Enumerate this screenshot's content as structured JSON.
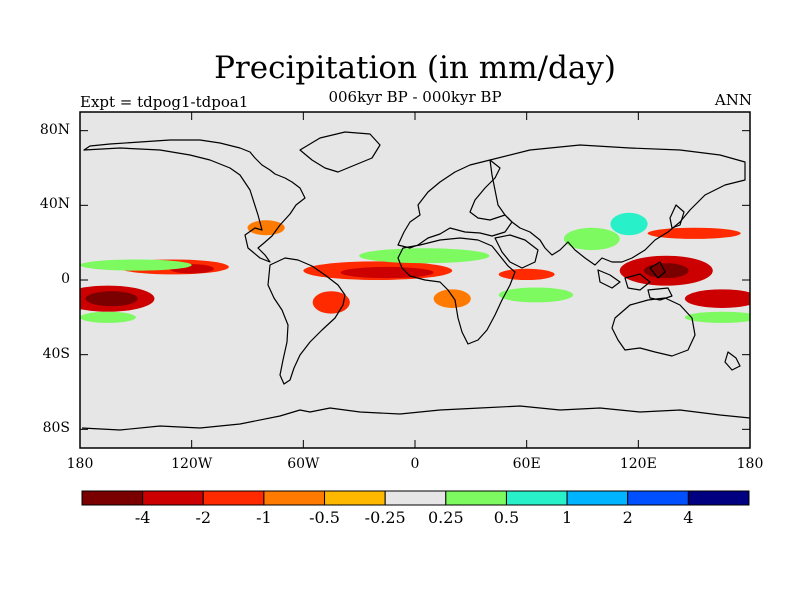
{
  "title": "Precipitation (in mm/day)",
  "left_title": "Expt = tdpog1-tdpoa1",
  "center_title": "006kyr BP - 000kyr BP",
  "right_title": "ANN",
  "background_color": "#e6e6e6",
  "y_ticks": [
    {
      "label": "80N",
      "lat": 80
    },
    {
      "label": "40N",
      "lat": 40
    },
    {
      "label": "0",
      "lat": 0
    },
    {
      "label": "40S",
      "lat": -40
    },
    {
      "label": "80S",
      "lat": -80
    }
  ],
  "x_ticks": [
    {
      "label": "180",
      "lon": -180
    },
    {
      "label": "120W",
      "lon": -120
    },
    {
      "label": "60W",
      "lon": -60
    },
    {
      "label": "0",
      "lon": 0
    },
    {
      "label": "60E",
      "lon": 60
    },
    {
      "label": "120E",
      "lon": 120
    },
    {
      "label": "180",
      "lon": 180
    }
  ],
  "colorbar": {
    "colors": [
      "#7a0000",
      "#cc0000",
      "#ff2a00",
      "#ff7a00",
      "#ffb800",
      "#e6e6e6",
      "#7dfa5f",
      "#28f0c8",
      "#00b4ff",
      "#0050ff",
      "#000080"
    ],
    "labels": [
      {
        "label": "-4",
        "boundary": 1
      },
      {
        "label": "-2",
        "boundary": 2
      },
      {
        "label": "-1",
        "boundary": 3
      },
      {
        "label": "-0.5",
        "boundary": 4
      },
      {
        "label": "-0.25",
        "boundary": 5
      },
      {
        "label": "0.25",
        "boundary": 6
      },
      {
        "label": "0.5",
        "boundary": 7
      },
      {
        "label": "1",
        "boundary": 8
      },
      {
        "label": "2",
        "boundary": 9
      },
      {
        "label": "4",
        "boundary": 10
      }
    ]
  },
  "anomaly_regions": [
    {
      "name": "central-pacific-dry",
      "lon": -165,
      "lat": -10,
      "rlon": 25,
      "rlat": 7,
      "level": -3
    },
    {
      "name": "central-pacific-dry-core",
      "lon": -163,
      "lat": -10,
      "rlon": 14,
      "rlat": 4,
      "level": -4
    },
    {
      "name": "east-pacific-itcz-dry",
      "lon": -130,
      "lat": 7,
      "rlon": 30,
      "rlat": 4,
      "level": -2
    },
    {
      "name": "east-pacific-itcz-dry-core",
      "lon": -120,
      "lat": 6,
      "rlon": 12,
      "rlat": 2.5,
      "level": -3
    },
    {
      "name": "atlantic-itcz-dry",
      "lon": -20,
      "lat": 5,
      "rlon": 40,
      "rlat": 5,
      "level": -2
    },
    {
      "name": "atlantic-itcz-dry-core",
      "lon": -15,
      "lat": 4,
      "rlon": 25,
      "rlat": 3,
      "level": -3
    },
    {
      "name": "south-america-dry",
      "lon": -45,
      "lat": -12,
      "rlon": 10,
      "rlat": 6,
      "level": -2
    },
    {
      "name": "east-pacific-wet",
      "lon": -150,
      "lat": 8,
      "rlon": 30,
      "rlat": 3,
      "level": 1
    },
    {
      "name": "south-pacific-wet",
      "lon": -165,
      "lat": -20,
      "rlon": 15,
      "rlat": 3,
      "level": 1
    },
    {
      "name": "sahel-wet",
      "lon": 5,
      "lat": 13,
      "rlon": 35,
      "rlat": 4,
      "level": 1
    },
    {
      "name": "indian-ocean-dry",
      "lon": 60,
      "lat": 3,
      "rlon": 15,
      "rlat": 3,
      "level": -2
    },
    {
      "name": "south-indian-wet",
      "lon": 65,
      "lat": -8,
      "rlon": 20,
      "rlat": 4,
      "level": 1
    },
    {
      "name": "maritime-dry",
      "lon": 135,
      "lat": 5,
      "rlon": 25,
      "rlat": 8,
      "level": -3
    },
    {
      "name": "maritime-dry-core",
      "lon": 135,
      "lat": 5,
      "rlon": 12,
      "rlat": 4,
      "level": -4
    },
    {
      "name": "west-pacific-dry",
      "lon": 165,
      "lat": -10,
      "rlon": 20,
      "rlat": 5,
      "level": -3
    },
    {
      "name": "india-wet",
      "lon": 95,
      "lat": 22,
      "rlon": 15,
      "rlat": 6,
      "level": 1
    },
    {
      "name": "china-wet",
      "lon": 115,
      "lat": 30,
      "rlon": 10,
      "rlat": 6,
      "level": 2
    },
    {
      "name": "sw-pacific-wet",
      "lon": 165,
      "lat": -20,
      "rlon": 20,
      "rlat": 3,
      "level": 1
    },
    {
      "name": "kuroshio-dry",
      "lon": 150,
      "lat": 25,
      "rlon": 25,
      "rlat": 3,
      "level": -2
    },
    {
      "name": "gulf-mexico-dry",
      "lon": -80,
      "lat": 28,
      "rlon": 10,
      "rlat": 4,
      "level": -1
    },
    {
      "name": "sahel-dry",
      "lon": 20,
      "lat": -10,
      "rlon": 10,
      "rlat": 5,
      "level": -1
    }
  ]
}
